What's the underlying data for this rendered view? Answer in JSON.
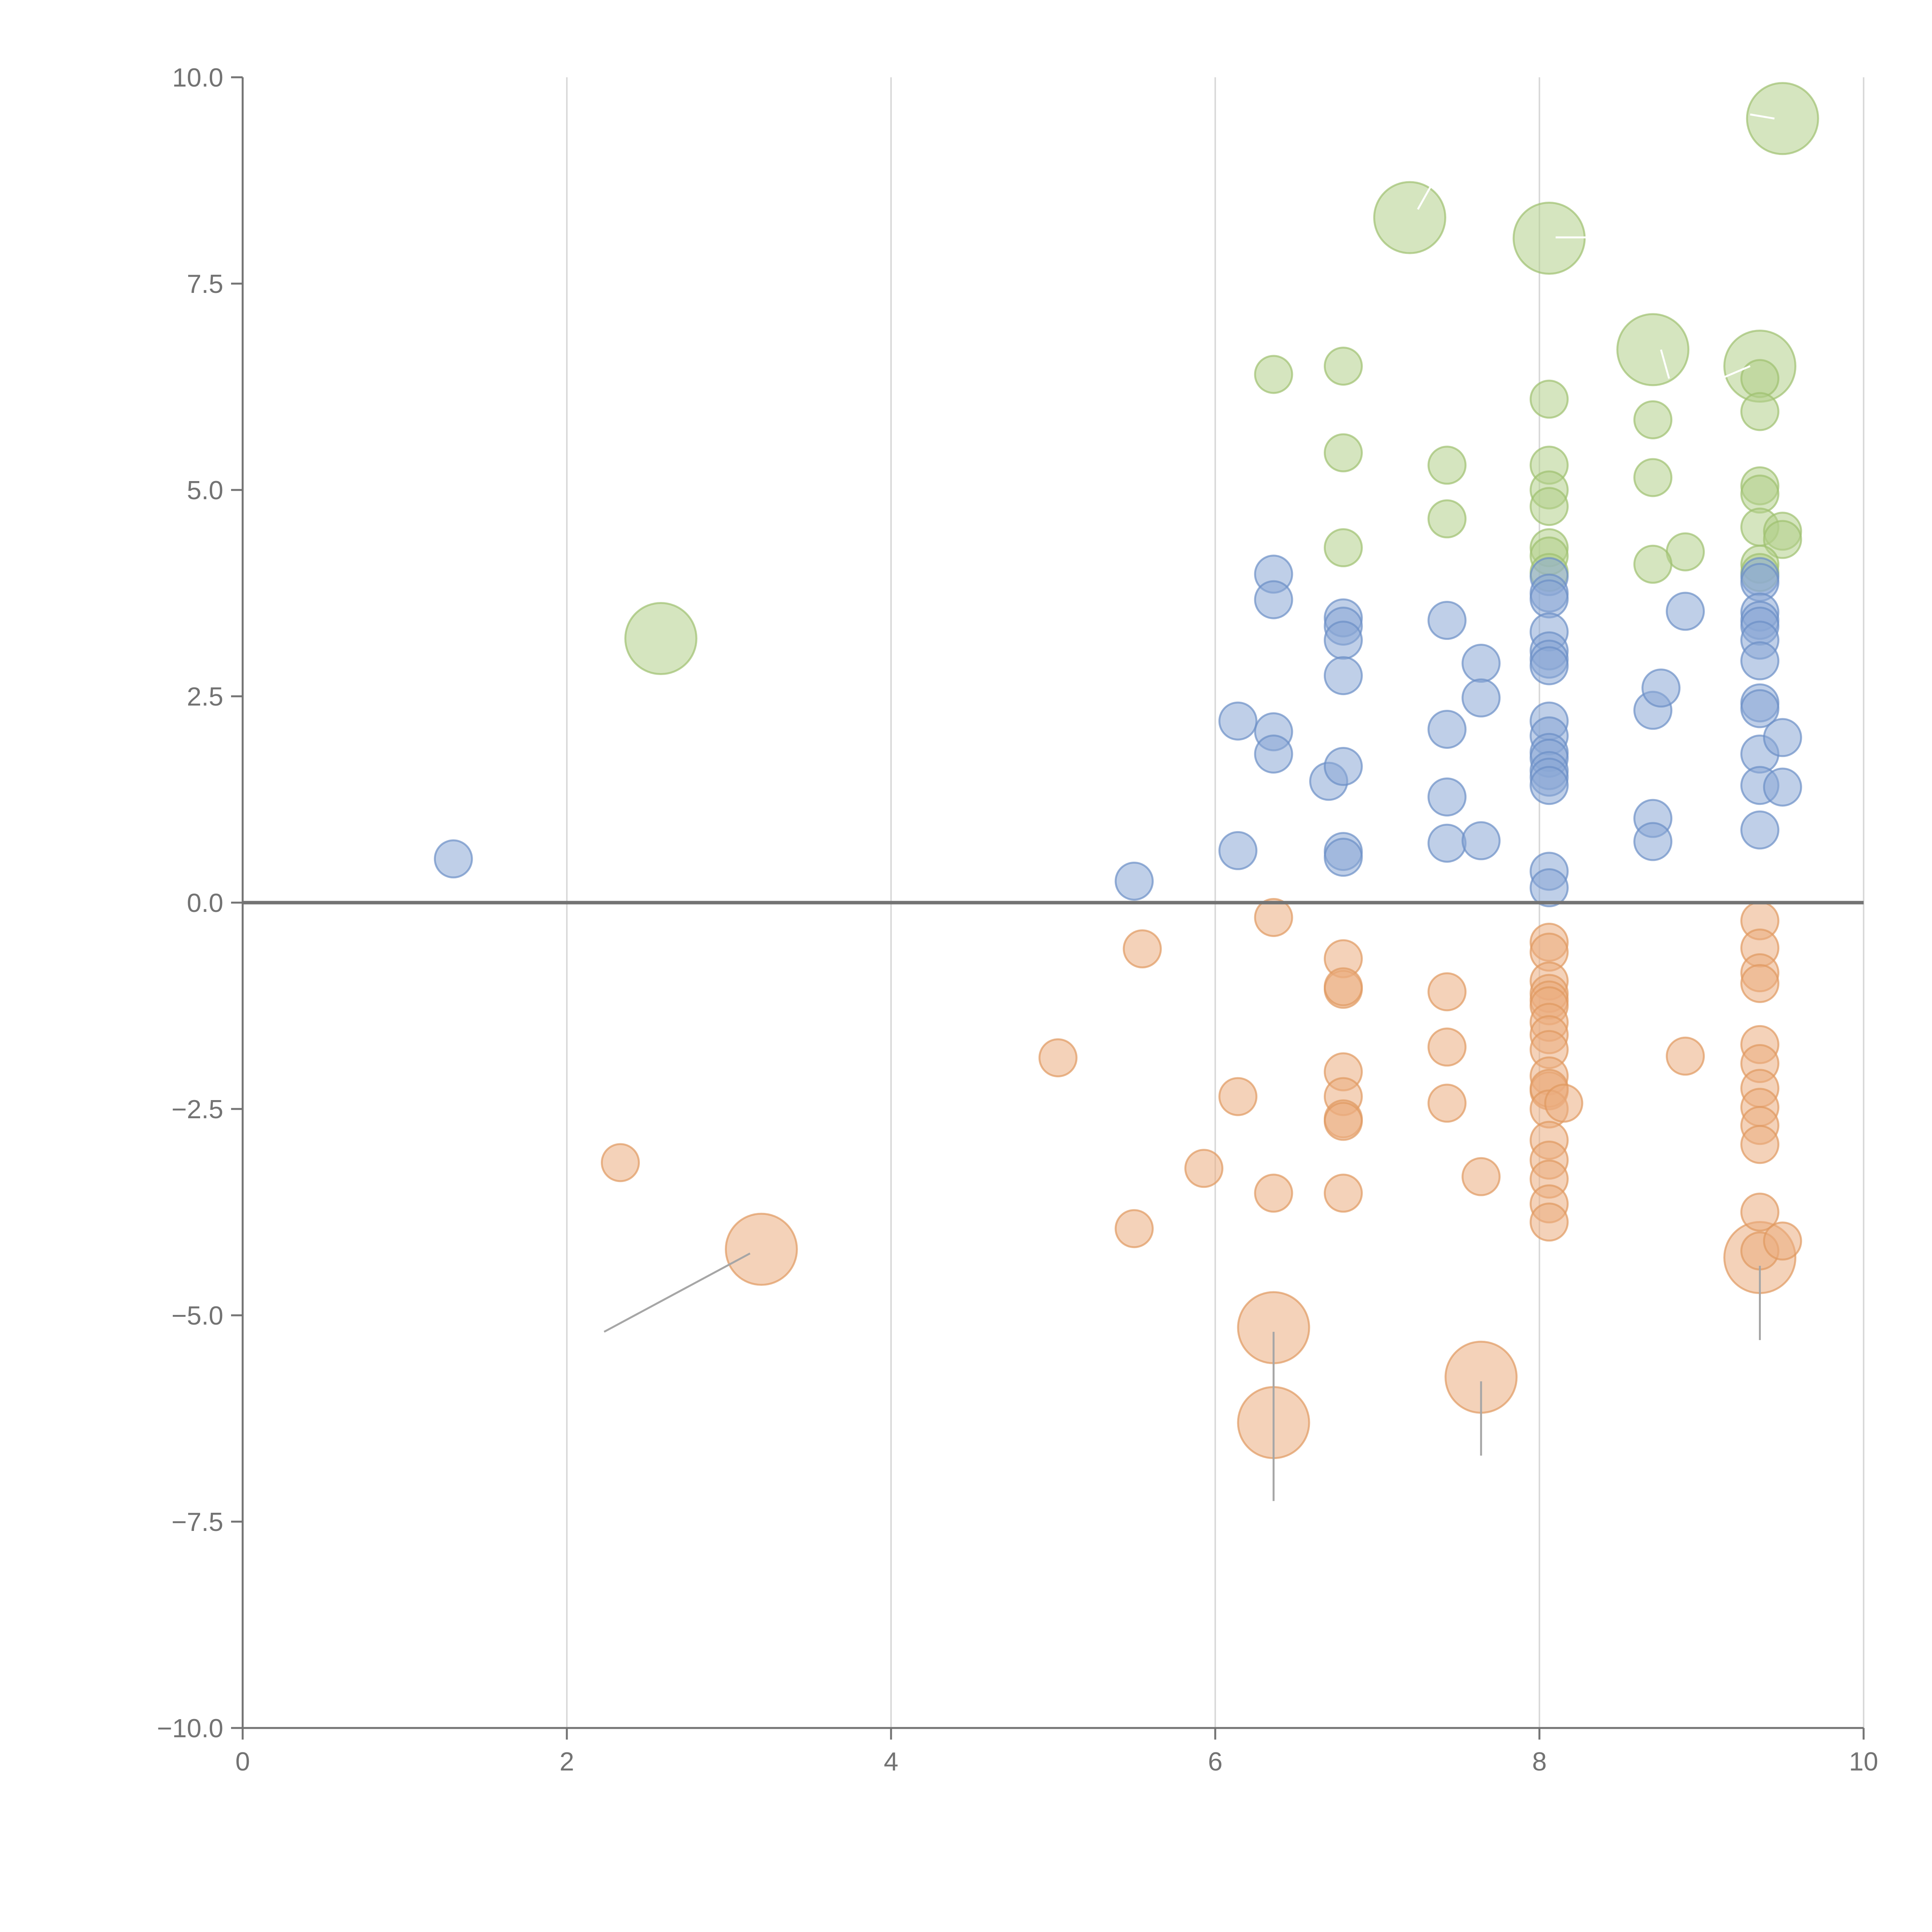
{
  "chart_data": {
    "type": "scatter",
    "title": "",
    "xlabel": "",
    "ylabel": "",
    "xlim": [
      0,
      10
    ],
    "ylim": [
      -10,
      10
    ],
    "grid": "vertical",
    "zero_line": true,
    "x_ticks": [
      "0",
      "2",
      "4",
      "6",
      "8",
      "10"
    ],
    "y_ticks": [
      "10.0",
      "7.5",
      "5.0",
      "2.5",
      "0.0",
      "−2.5",
      "−5.0",
      "−7.5",
      "−10.0"
    ],
    "colors": {
      "green": "#b3d08a",
      "blue": "#8aa8d6",
      "orange": "#ebad7f",
      "green_stroke": "#9ec06f",
      "blue_stroke": "#6b8fc6",
      "orange_stroke": "#e09860",
      "axis": "#737373",
      "grid": "#d9d9d9"
    },
    "series": [
      {
        "name": "positive-high",
        "color_key": "green",
        "points": [
          {
            "x": 9.5,
            "y": 9.5,
            "s": 2
          },
          {
            "x": 7.2,
            "y": 8.3,
            "s": 2
          },
          {
            "x": 8.06,
            "y": 8.05,
            "s": 2
          },
          {
            "x": 8.7,
            "y": 6.7,
            "s": 2
          },
          {
            "x": 9.36,
            "y": 6.5,
            "s": 2
          },
          {
            "x": 2.58,
            "y": 3.2,
            "s": 2
          },
          {
            "x": 6.36,
            "y": 6.4,
            "s": 1
          },
          {
            "x": 6.79,
            "y": 6.5,
            "s": 1
          },
          {
            "x": 8.06,
            "y": 6.1,
            "s": 1
          },
          {
            "x": 8.7,
            "y": 5.85,
            "s": 1
          },
          {
            "x": 9.36,
            "y": 6.35,
            "s": 1
          },
          {
            "x": 9.36,
            "y": 5.95,
            "s": 1
          },
          {
            "x": 6.79,
            "y": 5.45,
            "s": 1
          },
          {
            "x": 7.43,
            "y": 5.3,
            "s": 1
          },
          {
            "x": 8.06,
            "y": 5.3,
            "s": 1
          },
          {
            "x": 8.7,
            "y": 5.15,
            "s": 1
          },
          {
            "x": 9.36,
            "y": 5.05,
            "s": 1
          },
          {
            "x": 9.36,
            "y": 4.95,
            "s": 1
          },
          {
            "x": 8.06,
            "y": 5.0,
            "s": 1
          },
          {
            "x": 8.06,
            "y": 4.8,
            "s": 1
          },
          {
            "x": 7.43,
            "y": 4.65,
            "s": 1
          },
          {
            "x": 9.36,
            "y": 4.55,
            "s": 1
          },
          {
            "x": 9.5,
            "y": 4.5,
            "s": 1
          },
          {
            "x": 9.5,
            "y": 4.4,
            "s": 1
          },
          {
            "x": 6.79,
            "y": 4.3,
            "s": 1
          },
          {
            "x": 8.06,
            "y": 4.3,
            "s": 1
          },
          {
            "x": 8.06,
            "y": 4.2,
            "s": 1
          },
          {
            "x": 8.9,
            "y": 4.25,
            "s": 1
          },
          {
            "x": 8.7,
            "y": 4.1,
            "s": 1
          },
          {
            "x": 9.36,
            "y": 4.1,
            "s": 1
          },
          {
            "x": 9.36,
            "y": 4.0,
            "s": 1
          },
          {
            "x": 8.06,
            "y": 4.0,
            "s": 1
          }
        ]
      },
      {
        "name": "positive-low",
        "color_key": "blue",
        "points": [
          {
            "x": 1.3,
            "y": 0.53,
            "s": 1
          },
          {
            "x": 5.5,
            "y": 0.26,
            "s": 1
          },
          {
            "x": 6.14,
            "y": 0.63,
            "s": 1
          },
          {
            "x": 6.14,
            "y": 2.2,
            "s": 1
          },
          {
            "x": 6.36,
            "y": 3.98,
            "s": 1
          },
          {
            "x": 6.36,
            "y": 3.67,
            "s": 1
          },
          {
            "x": 6.36,
            "y": 2.07,
            "s": 1
          },
          {
            "x": 6.36,
            "y": 1.8,
            "s": 1
          },
          {
            "x": 6.7,
            "y": 1.47,
            "s": 1
          },
          {
            "x": 6.79,
            "y": 3.45,
            "s": 1
          },
          {
            "x": 6.79,
            "y": 3.35,
            "s": 1
          },
          {
            "x": 6.79,
            "y": 3.18,
            "s": 1
          },
          {
            "x": 6.79,
            "y": 2.75,
            "s": 1
          },
          {
            "x": 6.79,
            "y": 1.65,
            "s": 1
          },
          {
            "x": 6.79,
            "y": 0.62,
            "s": 1
          },
          {
            "x": 6.79,
            "y": 0.55,
            "s": 1
          },
          {
            "x": 7.43,
            "y": 3.42,
            "s": 1
          },
          {
            "x": 7.43,
            "y": 2.1,
            "s": 1
          },
          {
            "x": 7.43,
            "y": 1.28,
            "s": 1
          },
          {
            "x": 7.43,
            "y": 0.72,
            "s": 1
          },
          {
            "x": 7.64,
            "y": 2.9,
            "s": 1
          },
          {
            "x": 7.64,
            "y": 2.48,
            "s": 1
          },
          {
            "x": 7.64,
            "y": 0.75,
            "s": 1
          },
          {
            "x": 8.06,
            "y": 3.95,
            "s": 1
          },
          {
            "x": 8.06,
            "y": 3.75,
            "s": 1
          },
          {
            "x": 8.06,
            "y": 3.68,
            "s": 1
          },
          {
            "x": 8.06,
            "y": 3.28,
            "s": 1
          },
          {
            "x": 8.06,
            "y": 3.05,
            "s": 1
          },
          {
            "x": 8.06,
            "y": 2.95,
            "s": 1
          },
          {
            "x": 8.06,
            "y": 2.87,
            "s": 1
          },
          {
            "x": 8.06,
            "y": 2.2,
            "s": 1
          },
          {
            "x": 8.06,
            "y": 2.02,
            "s": 1
          },
          {
            "x": 8.06,
            "y": 1.82,
            "s": 1
          },
          {
            "x": 8.06,
            "y": 1.75,
            "s": 1
          },
          {
            "x": 8.06,
            "y": 1.6,
            "s": 1
          },
          {
            "x": 8.06,
            "y": 1.52,
            "s": 1
          },
          {
            "x": 8.06,
            "y": 1.42,
            "s": 1
          },
          {
            "x": 8.06,
            "y": 0.38,
            "s": 1
          },
          {
            "x": 8.06,
            "y": 0.18,
            "s": 1
          },
          {
            "x": 8.7,
            "y": 2.33,
            "s": 1
          },
          {
            "x": 8.75,
            "y": 2.6,
            "s": 1
          },
          {
            "x": 8.7,
            "y": 1.02,
            "s": 1
          },
          {
            "x": 8.7,
            "y": 0.74,
            "s": 1
          },
          {
            "x": 8.9,
            "y": 3.53,
            "s": 1
          },
          {
            "x": 9.36,
            "y": 3.95,
            "s": 1
          },
          {
            "x": 9.36,
            "y": 3.88,
            "s": 1
          },
          {
            "x": 9.36,
            "y": 3.52,
            "s": 1
          },
          {
            "x": 9.36,
            "y": 3.42,
            "s": 1
          },
          {
            "x": 9.36,
            "y": 3.35,
            "s": 1
          },
          {
            "x": 9.36,
            "y": 3.18,
            "s": 1
          },
          {
            "x": 9.36,
            "y": 2.93,
            "s": 1
          },
          {
            "x": 9.36,
            "y": 2.42,
            "s": 1
          },
          {
            "x": 9.36,
            "y": 2.35,
            "s": 1
          },
          {
            "x": 9.36,
            "y": 1.8,
            "s": 1
          },
          {
            "x": 9.36,
            "y": 1.42,
            "s": 1
          },
          {
            "x": 9.36,
            "y": 0.88,
            "s": 1
          },
          {
            "x": 9.5,
            "y": 2.0,
            "s": 1
          },
          {
            "x": 9.5,
            "y": 1.4,
            "s": 1
          }
        ]
      },
      {
        "name": "negative",
        "color_key": "orange",
        "points": [
          {
            "x": 3.2,
            "y": -4.2,
            "s": 2
          },
          {
            "x": 6.36,
            "y": -5.15,
            "s": 2
          },
          {
            "x": 6.36,
            "y": -6.3,
            "s": 2
          },
          {
            "x": 7.64,
            "y": -5.75,
            "s": 2
          },
          {
            "x": 9.36,
            "y": -4.3,
            "s": 2
          },
          {
            "x": 2.33,
            "y": -3.15,
            "s": 1
          },
          {
            "x": 5.03,
            "y": -1.88,
            "s": 1
          },
          {
            "x": 5.5,
            "y": -3.95,
            "s": 1
          },
          {
            "x": 5.55,
            "y": -0.56,
            "s": 1
          },
          {
            "x": 5.93,
            "y": -3.22,
            "s": 1
          },
          {
            "x": 6.14,
            "y": -2.35,
            "s": 1
          },
          {
            "x": 6.36,
            "y": -0.18,
            "s": 1
          },
          {
            "x": 6.36,
            "y": -3.52,
            "s": 1
          },
          {
            "x": 6.79,
            "y": -0.68,
            "s": 1
          },
          {
            "x": 6.79,
            "y": -1.05,
            "s": 1
          },
          {
            "x": 6.79,
            "y": -1.02,
            "s": 1
          },
          {
            "x": 6.79,
            "y": -2.05,
            "s": 1
          },
          {
            "x": 6.79,
            "y": -2.35,
            "s": 1
          },
          {
            "x": 6.79,
            "y": -2.62,
            "s": 1
          },
          {
            "x": 6.79,
            "y": -2.65,
            "s": 1
          },
          {
            "x": 6.79,
            "y": -3.52,
            "s": 1
          },
          {
            "x": 7.43,
            "y": -1.08,
            "s": 1
          },
          {
            "x": 7.43,
            "y": -1.75,
            "s": 1
          },
          {
            "x": 7.43,
            "y": -2.43,
            "s": 1
          },
          {
            "x": 7.64,
            "y": -3.32,
            "s": 1
          },
          {
            "x": 8.06,
            "y": -0.48,
            "s": 1
          },
          {
            "x": 8.06,
            "y": -0.6,
            "s": 1
          },
          {
            "x": 8.06,
            "y": -0.95,
            "s": 1
          },
          {
            "x": 8.06,
            "y": -1.1,
            "s": 1
          },
          {
            "x": 8.06,
            "y": -1.18,
            "s": 1
          },
          {
            "x": 8.06,
            "y": -1.25,
            "s": 1
          },
          {
            "x": 8.06,
            "y": -1.45,
            "s": 1
          },
          {
            "x": 8.06,
            "y": -1.6,
            "s": 1
          },
          {
            "x": 8.06,
            "y": -1.78,
            "s": 1
          },
          {
            "x": 8.06,
            "y": -2.1,
            "s": 1
          },
          {
            "x": 8.06,
            "y": -2.28,
            "s": 1
          },
          {
            "x": 8.06,
            "y": -2.25,
            "s": 1
          },
          {
            "x": 8.06,
            "y": -2.5,
            "s": 1
          },
          {
            "x": 8.15,
            "y": -2.43,
            "s": 1
          },
          {
            "x": 8.06,
            "y": -2.88,
            "s": 1
          },
          {
            "x": 8.06,
            "y": -3.12,
            "s": 1
          },
          {
            "x": 8.06,
            "y": -3.35,
            "s": 1
          },
          {
            "x": 8.06,
            "y": -3.65,
            "s": 1
          },
          {
            "x": 8.06,
            "y": -3.87,
            "s": 1
          },
          {
            "x": 8.9,
            "y": -1.86,
            "s": 1
          },
          {
            "x": 9.36,
            "y": -0.22,
            "s": 1
          },
          {
            "x": 9.36,
            "y": -0.55,
            "s": 1
          },
          {
            "x": 9.36,
            "y": -0.85,
            "s": 1
          },
          {
            "x": 9.36,
            "y": -0.98,
            "s": 1
          },
          {
            "x": 9.36,
            "y": -1.72,
            "s": 1
          },
          {
            "x": 9.36,
            "y": -1.95,
            "s": 1
          },
          {
            "x": 9.36,
            "y": -2.25,
            "s": 1
          },
          {
            "x": 9.36,
            "y": -2.48,
            "s": 1
          },
          {
            "x": 9.36,
            "y": -2.7,
            "s": 1
          },
          {
            "x": 9.36,
            "y": -2.93,
            "s": 1
          },
          {
            "x": 9.36,
            "y": -3.75,
            "s": 1
          },
          {
            "x": 9.36,
            "y": -4.22,
            "s": 1
          },
          {
            "x": 9.5,
            "y": -4.1,
            "s": 1
          }
        ]
      }
    ],
    "annotations": [
      {
        "from": [
          2.23,
          -5.2
        ],
        "to": [
          3.13,
          -4.25
        ],
        "tone": "gray"
      },
      {
        "from": [
          6.36,
          -5.2
        ],
        "to": [
          6.36,
          -7.25
        ],
        "tone": "gray"
      },
      {
        "from": [
          7.64,
          -5.8
        ],
        "to": [
          7.64,
          -6.7
        ],
        "tone": "gray"
      },
      {
        "from": [
          9.36,
          -4.4
        ],
        "to": [
          9.36,
          -5.3
        ],
        "tone": "gray"
      },
      {
        "from": [
          7.25,
          8.4
        ],
        "to": [
          7.35,
          8.75
        ],
        "tone": "light"
      },
      {
        "from": [
          8.1,
          8.06
        ],
        "to": [
          8.3,
          8.06
        ],
        "tone": "light"
      },
      {
        "from": [
          8.75,
          6.7
        ],
        "to": [
          8.8,
          6.35
        ],
        "tone": "light"
      },
      {
        "from": [
          9.3,
          6.5
        ],
        "to": [
          9.12,
          6.35
        ],
        "tone": "light"
      },
      {
        "from": [
          9.45,
          9.5
        ],
        "to": [
          9.3,
          9.55
        ],
        "tone": "light"
      }
    ]
  }
}
